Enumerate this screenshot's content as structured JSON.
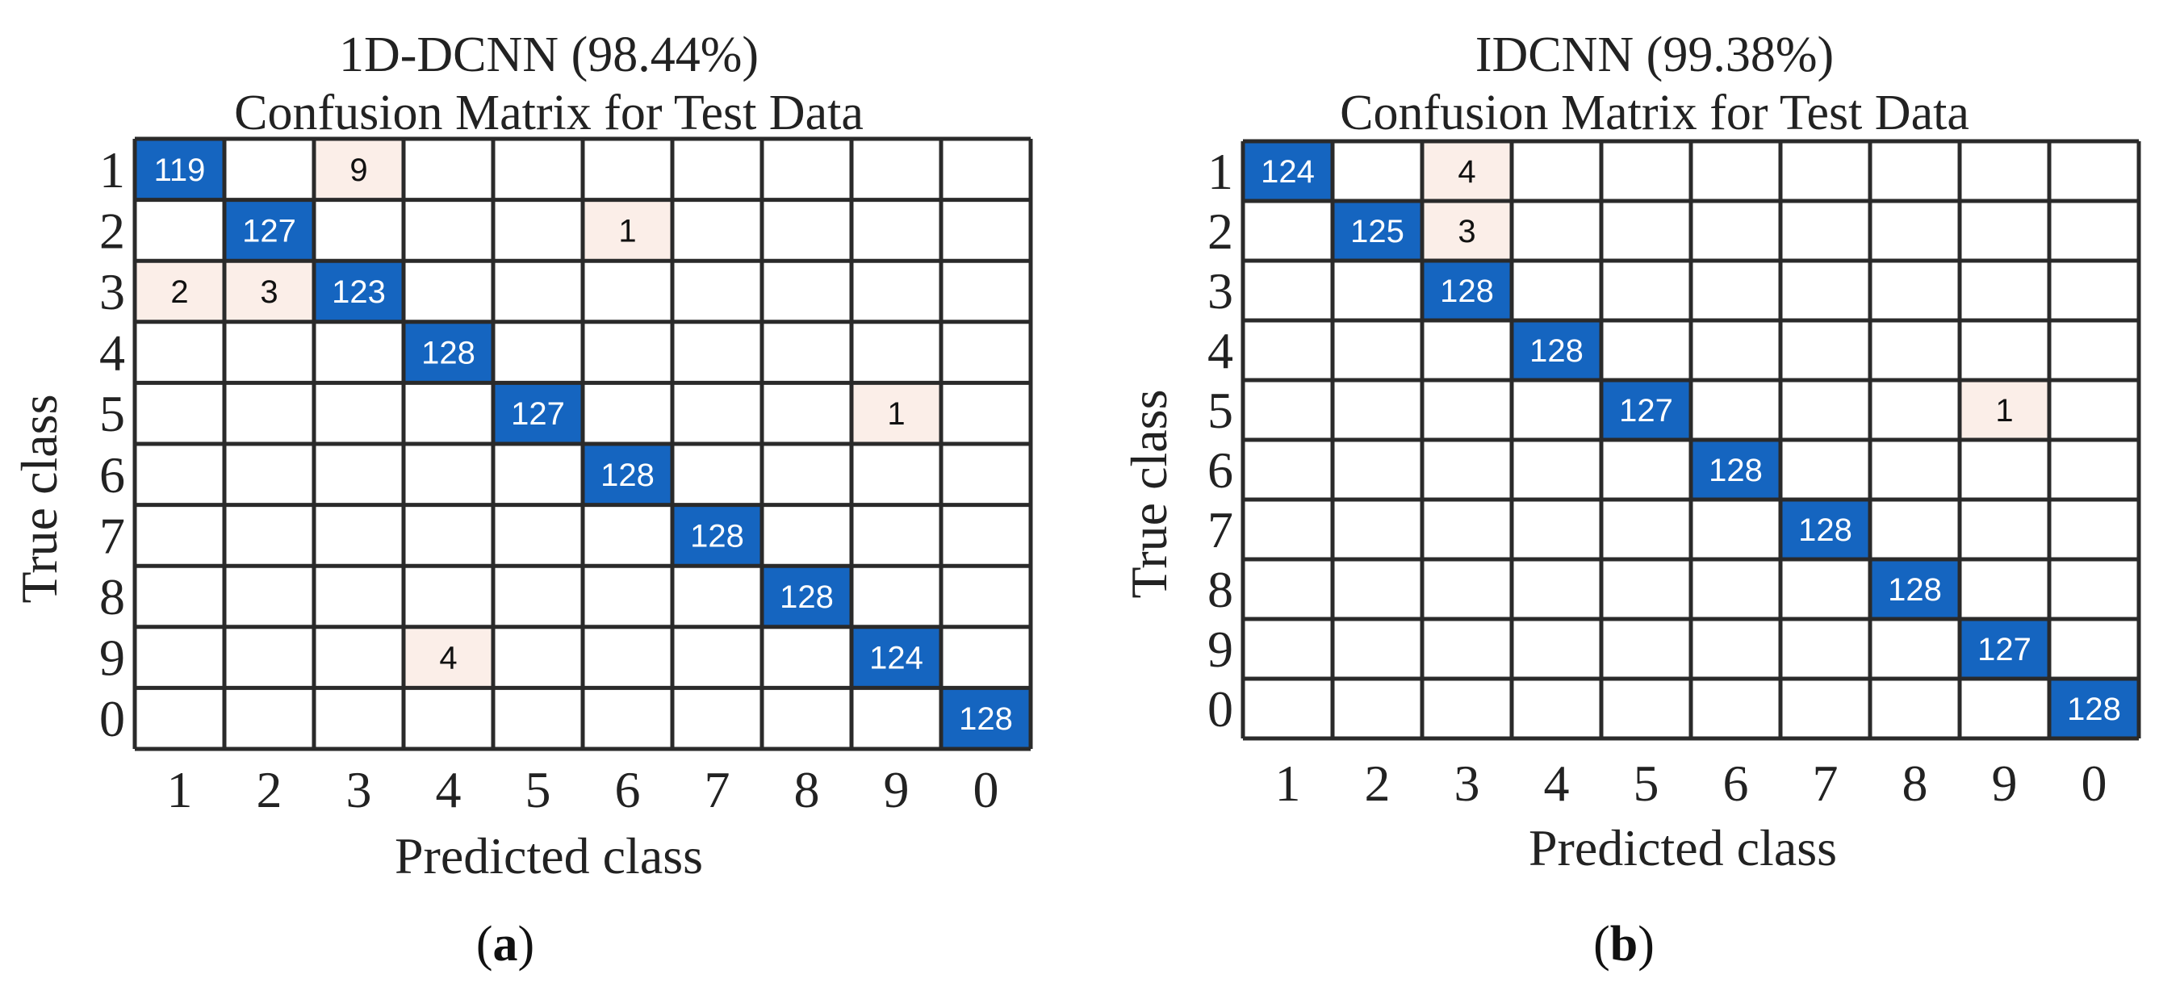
{
  "colors": {
    "diag": "#1565c0",
    "offdiag": "#fbeee8",
    "grid": "#2a2a2a",
    "diag_text": "#ffffff",
    "offdiag_text": "#111111"
  },
  "chart_data": [
    {
      "type": "heatmap",
      "model": "1D-DCNN (98.44%)",
      "title": "Confusion Matrix for Test Data",
      "xlabel": "Predicted class",
      "ylabel": "True class",
      "panel_label": "a",
      "classes": [
        "1",
        "2",
        "3",
        "4",
        "5",
        "6",
        "7",
        "8",
        "9",
        "0"
      ],
      "matrix": [
        [
          119,
          0,
          9,
          0,
          0,
          0,
          0,
          0,
          0,
          0
        ],
        [
          0,
          127,
          0,
          0,
          0,
          1,
          0,
          0,
          0,
          0
        ],
        [
          2,
          3,
          123,
          0,
          0,
          0,
          0,
          0,
          0,
          0
        ],
        [
          0,
          0,
          0,
          128,
          0,
          0,
          0,
          0,
          0,
          0
        ],
        [
          0,
          0,
          0,
          0,
          127,
          0,
          0,
          0,
          1,
          0
        ],
        [
          0,
          0,
          0,
          0,
          0,
          128,
          0,
          0,
          0,
          0
        ],
        [
          0,
          0,
          0,
          0,
          0,
          0,
          128,
          0,
          0,
          0
        ],
        [
          0,
          0,
          0,
          0,
          0,
          0,
          0,
          128,
          0,
          0
        ],
        [
          0,
          0,
          0,
          4,
          0,
          0,
          0,
          0,
          124,
          0
        ],
        [
          0,
          0,
          0,
          0,
          0,
          0,
          0,
          0,
          0,
          128
        ]
      ]
    },
    {
      "type": "heatmap",
      "model": "IDCNN (99.38%)",
      "title": "Confusion Matrix for Test Data",
      "xlabel": "Predicted class",
      "ylabel": "True class",
      "panel_label": "b",
      "classes": [
        "1",
        "2",
        "3",
        "4",
        "5",
        "6",
        "7",
        "8",
        "9",
        "0"
      ],
      "matrix": [
        [
          124,
          0,
          4,
          0,
          0,
          0,
          0,
          0,
          0,
          0
        ],
        [
          0,
          125,
          3,
          0,
          0,
          0,
          0,
          0,
          0,
          0
        ],
        [
          0,
          0,
          128,
          0,
          0,
          0,
          0,
          0,
          0,
          0
        ],
        [
          0,
          0,
          0,
          128,
          0,
          0,
          0,
          0,
          0,
          0
        ],
        [
          0,
          0,
          0,
          0,
          127,
          0,
          0,
          0,
          1,
          0
        ],
        [
          0,
          0,
          0,
          0,
          0,
          128,
          0,
          0,
          0,
          0
        ],
        [
          0,
          0,
          0,
          0,
          0,
          0,
          128,
          0,
          0,
          0
        ],
        [
          0,
          0,
          0,
          0,
          0,
          0,
          0,
          128,
          0,
          0
        ],
        [
          0,
          0,
          0,
          0,
          0,
          0,
          0,
          0,
          127,
          0
        ],
        [
          0,
          0,
          0,
          0,
          0,
          0,
          0,
          0,
          0,
          128
        ]
      ]
    }
  ]
}
